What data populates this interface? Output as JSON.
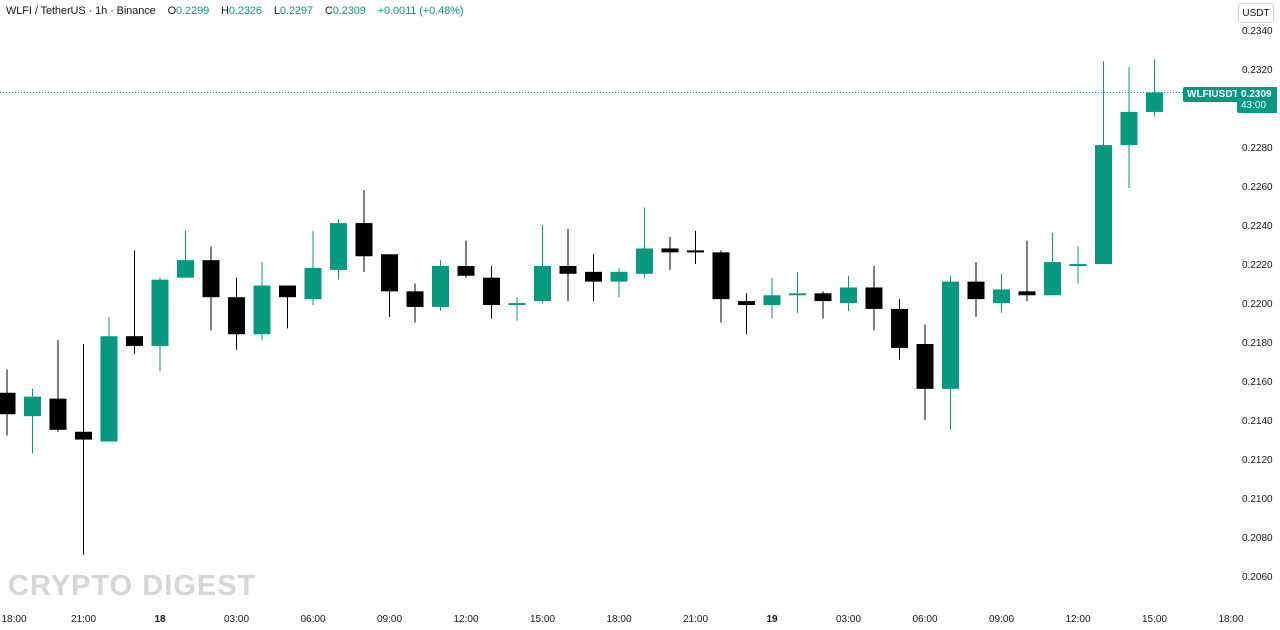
{
  "header": {
    "symbol": "WLFI / TetherUS · 1h · Binance",
    "o_label": "O",
    "o_value": "0.2299",
    "h_label": "H",
    "h_value": "0.2326",
    "l_label": "L",
    "l_value": "0.2297",
    "c_label": "C",
    "c_value": "0.2309",
    "change": "+0.0011 (+0.48%)"
  },
  "currency_button": "USDT",
  "price_label": {
    "ticker": "WLFIUSDT",
    "price": "0.2309",
    "countdown": "43:00"
  },
  "watermark": "CRYPTO DIGEST",
  "colors": {
    "up": "#089981",
    "down": "#000000",
    "last_price_line": "#089981"
  },
  "chart_data": {
    "type": "candlestick",
    "title": "WLFI / TetherUS · 1h · Binance",
    "ylabel": "USDT",
    "ylim": [
      0.205,
      0.2345
    ],
    "grid": false,
    "y_ticks": [
      "0.2340",
      "0.2320",
      "0.2300",
      "0.2280",
      "0.2260",
      "0.2240",
      "0.2220",
      "0.2200",
      "0.2180",
      "0.2160",
      "0.2140",
      "0.2120",
      "0.2100",
      "0.2080",
      "0.2060"
    ],
    "x_tick_labels": [
      {
        "label": "18:00",
        "candle": 0,
        "bold": false
      },
      {
        "label": "21:00",
        "candle": 3,
        "bold": false
      },
      {
        "label": "18",
        "candle": 6,
        "bold": true
      },
      {
        "label": "03:00",
        "candle": 9,
        "bold": false
      },
      {
        "label": "06:00",
        "candle": 12,
        "bold": false
      },
      {
        "label": "09:00",
        "candle": 15,
        "bold": false
      },
      {
        "label": "12:00",
        "candle": 18,
        "bold": false
      },
      {
        "label": "15:00",
        "candle": 21,
        "bold": false
      },
      {
        "label": "18:00",
        "candle": 24,
        "bold": false
      },
      {
        "label": "21:00",
        "candle": 27,
        "bold": false
      },
      {
        "label": "19",
        "candle": 30,
        "bold": true
      },
      {
        "label": "03:00",
        "candle": 33,
        "bold": false
      },
      {
        "label": "06:00",
        "candle": 36,
        "bold": false
      },
      {
        "label": "09:00",
        "candle": 39,
        "bold": false
      },
      {
        "label": "12:00",
        "candle": 42,
        "bold": false
      },
      {
        "label": "15:00",
        "candle": 45,
        "bold": false
      },
      {
        "label": "18:00",
        "candle": 48,
        "bold": false
      }
    ],
    "last_price": 0.2309,
    "candles": [
      {
        "o": 0.2155,
        "h": 0.2167,
        "l": 0.2133,
        "c": 0.2144
      },
      {
        "o": 0.2143,
        "h": 0.2157,
        "l": 0.2124,
        "c": 0.2153
      },
      {
        "o": 0.2152,
        "h": 0.2182,
        "l": 0.2135,
        "c": 0.2136
      },
      {
        "o": 0.2135,
        "h": 0.218,
        "l": 0.2072,
        "c": 0.2131
      },
      {
        "o": 0.213,
        "h": 0.2194,
        "l": 0.213,
        "c": 0.2184
      },
      {
        "o": 0.2184,
        "h": 0.2228,
        "l": 0.2175,
        "c": 0.2179
      },
      {
        "o": 0.2179,
        "h": 0.2214,
        "l": 0.2166,
        "c": 0.2213
      },
      {
        "o": 0.2214,
        "h": 0.2238,
        "l": 0.2214,
        "c": 0.2223
      },
      {
        "o": 0.2223,
        "h": 0.223,
        "l": 0.2187,
        "c": 0.2204
      },
      {
        "o": 0.2204,
        "h": 0.2214,
        "l": 0.2177,
        "c": 0.2185
      },
      {
        "o": 0.2185,
        "h": 0.2222,
        "l": 0.2182,
        "c": 0.221
      },
      {
        "o": 0.221,
        "h": 0.221,
        "l": 0.2188,
        "c": 0.2204
      },
      {
        "o": 0.2203,
        "h": 0.2238,
        "l": 0.22,
        "c": 0.2219
      },
      {
        "o": 0.2218,
        "h": 0.2244,
        "l": 0.2213,
        "c": 0.2242
      },
      {
        "o": 0.2242,
        "h": 0.2259,
        "l": 0.2217,
        "c": 0.2225
      },
      {
        "o": 0.2226,
        "h": 0.2226,
        "l": 0.2194,
        "c": 0.2207
      },
      {
        "o": 0.2207,
        "h": 0.2211,
        "l": 0.2191,
        "c": 0.2199
      },
      {
        "o": 0.2199,
        "h": 0.2223,
        "l": 0.2197,
        "c": 0.222
      },
      {
        "o": 0.222,
        "h": 0.2233,
        "l": 0.2214,
        "c": 0.2215
      },
      {
        "o": 0.2214,
        "h": 0.222,
        "l": 0.2193,
        "c": 0.22
      },
      {
        "o": 0.2201,
        "h": 0.2204,
        "l": 0.2192,
        "c": 0.2201
      },
      {
        "o": 0.2202,
        "h": 0.2241,
        "l": 0.2201,
        "c": 0.222
      },
      {
        "o": 0.222,
        "h": 0.2239,
        "l": 0.2202,
        "c": 0.2216
      },
      {
        "o": 0.2217,
        "h": 0.2226,
        "l": 0.2202,
        "c": 0.2212
      },
      {
        "o": 0.2212,
        "h": 0.2219,
        "l": 0.2204,
        "c": 0.2217
      },
      {
        "o": 0.2216,
        "h": 0.225,
        "l": 0.2214,
        "c": 0.2229
      },
      {
        "o": 0.2229,
        "h": 0.2235,
        "l": 0.2218,
        "c": 0.2227
      },
      {
        "o": 0.2228,
        "h": 0.2238,
        "l": 0.2221,
        "c": 0.2227
      },
      {
        "o": 0.2227,
        "h": 0.2228,
        "l": 0.2191,
        "c": 0.2203
      },
      {
        "o": 0.2202,
        "h": 0.2206,
        "l": 0.2185,
        "c": 0.22
      },
      {
        "o": 0.22,
        "h": 0.2214,
        "l": 0.2193,
        "c": 0.2205
      },
      {
        "o": 0.2206,
        "h": 0.2217,
        "l": 0.2196,
        "c": 0.2206
      },
      {
        "o": 0.2206,
        "h": 0.2207,
        "l": 0.2193,
        "c": 0.2202
      },
      {
        "o": 0.2201,
        "h": 0.2215,
        "l": 0.2197,
        "c": 0.2209
      },
      {
        "o": 0.2209,
        "h": 0.222,
        "l": 0.2187,
        "c": 0.2198
      },
      {
        "o": 0.2198,
        "h": 0.2203,
        "l": 0.2172,
        "c": 0.2178
      },
      {
        "o": 0.218,
        "h": 0.219,
        "l": 0.2141,
        "c": 0.2157
      },
      {
        "o": 0.2157,
        "h": 0.2215,
        "l": 0.2136,
        "c": 0.2212
      },
      {
        "o": 0.2212,
        "h": 0.2222,
        "l": 0.2194,
        "c": 0.2203
      },
      {
        "o": 0.2201,
        "h": 0.2216,
        "l": 0.2196,
        "c": 0.2208
      },
      {
        "o": 0.2207,
        "h": 0.2233,
        "l": 0.2202,
        "c": 0.2205
      },
      {
        "o": 0.2205,
        "h": 0.2237,
        "l": 0.2205,
        "c": 0.2222
      },
      {
        "o": 0.2221,
        "h": 0.223,
        "l": 0.2211,
        "c": 0.2221
      },
      {
        "o": 0.2221,
        "h": 0.2325,
        "l": 0.2221,
        "c": 0.2282
      },
      {
        "o": 0.2282,
        "h": 0.2322,
        "l": 0.226,
        "c": 0.2299
      },
      {
        "o": 0.2299,
        "h": 0.2326,
        "l": 0.2297,
        "c": 0.2309
      }
    ]
  }
}
